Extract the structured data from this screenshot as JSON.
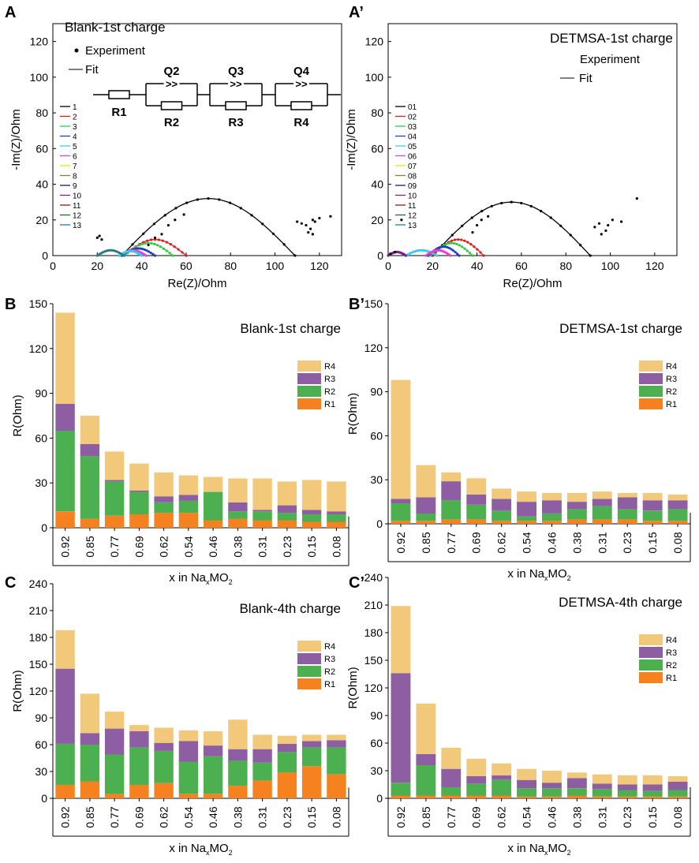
{
  "figure": {
    "panel_labels": [
      "A",
      "A’",
      "B",
      "B’",
      "C",
      "C’"
    ]
  },
  "chart_data": [
    {
      "panel": "A",
      "type": "scatter",
      "title": "Blank-1st charge",
      "xlabel": "Re(Z)/Ohm",
      "ylabel": "-Im(Z)/Ohm",
      "xlim": [
        0,
        130
      ],
      "ylim": [
        0,
        130
      ],
      "xticks": [
        0,
        20,
        40,
        60,
        80,
        100,
        120
      ],
      "yticks": [
        0,
        20,
        40,
        60,
        80,
        100,
        120
      ],
      "legend_experiment": "Experiment",
      "legend_fit": "Fit",
      "circuit_labels": [
        "R1",
        "Q2",
        "R2",
        "Q3",
        "R3",
        "Q4",
        "R4"
      ],
      "series_labels": [
        "1",
        "2",
        "3",
        "4",
        "5",
        "6",
        "7",
        "8",
        "9",
        "10",
        "11",
        "12",
        "13"
      ],
      "series_colors": [
        "#000000",
        "#e41a1c",
        "#2ecc40",
        "#1f3fbf",
        "#33ccee",
        "#e83ecf",
        "#e6e600",
        "#8c7d2f",
        "#1a1a7a",
        "#7a1f8f",
        "#8b1a1a",
        "#1f6e1f",
        "#2a7a8c"
      ],
      "arcs": [
        {
          "color": "#000000",
          "x0": 31,
          "x1": 109,
          "h": 32
        },
        {
          "color": "#e41a1c",
          "x0": 32,
          "x1": 60,
          "h": 9
        },
        {
          "color": "#2ecc40",
          "x0": 32,
          "x1": 54,
          "h": 7
        },
        {
          "color": "#1f3fbf",
          "x0": 31,
          "x1": 46,
          "h": 4
        },
        {
          "color": "#e83ecf",
          "x0": 30,
          "x1": 42,
          "h": 3
        },
        {
          "color": "#33ccee",
          "x0": 30,
          "x1": 40,
          "h": 2.5
        },
        {
          "color": "#2a7a8c",
          "x0": 20,
          "x1": 32,
          "h": 3
        }
      ],
      "tail_points": [
        [
          110,
          19
        ],
        [
          112,
          18
        ],
        [
          114,
          17
        ],
        [
          115,
          13
        ],
        [
          116,
          15
        ],
        [
          117,
          20
        ],
        [
          117,
          12
        ],
        [
          118,
          19
        ],
        [
          120,
          21
        ],
        [
          125,
          22
        ],
        [
          59,
          23
        ],
        [
          55,
          20
        ],
        [
          52,
          17
        ],
        [
          49,
          12
        ],
        [
          46,
          10
        ],
        [
          43,
          6
        ],
        [
          20,
          10
        ],
        [
          21,
          11
        ],
        [
          22,
          9
        ]
      ]
    },
    {
      "panel": "A’",
      "type": "scatter",
      "title": "DETMSA-1st charge",
      "xlabel": "Re(Z)/Ohm",
      "ylabel": "-Im(Z)/Ohm",
      "xlim": [
        0,
        130
      ],
      "ylim": [
        0,
        130
      ],
      "xticks": [
        0,
        20,
        40,
        60,
        80,
        100,
        120
      ],
      "yticks": [
        0,
        20,
        40,
        60,
        80,
        100,
        120
      ],
      "legend_experiment": "Experiment",
      "legend_fit": "Fit",
      "series_labels": [
        "01",
        "02",
        "03",
        "04",
        "05",
        "06",
        "07",
        "08",
        "09",
        "10",
        "11",
        "12",
        "13"
      ],
      "series_colors": [
        "#000000",
        "#e41a1c",
        "#2ecc40",
        "#1f3fbf",
        "#33ccee",
        "#e83ecf",
        "#e6e600",
        "#8c7d2f",
        "#1a1a7a",
        "#7a1f8f",
        "#8b1a1a",
        "#1f6e1f",
        "#2a7a8c"
      ],
      "arcs": [
        {
          "color": "#000000",
          "x0": 20,
          "x1": 91,
          "h": 30
        },
        {
          "color": "#e41a1c",
          "x0": 20,
          "x1": 43,
          "h": 9
        },
        {
          "color": "#2ecc40",
          "x0": 19,
          "x1": 38,
          "h": 7
        },
        {
          "color": "#1f3fbf",
          "x0": 18,
          "x1": 32,
          "h": 5
        },
        {
          "color": "#33ccee",
          "x0": 8,
          "x1": 22,
          "h": 3
        },
        {
          "color": "#e83ecf",
          "x0": 17,
          "x1": 28,
          "h": 3
        },
        {
          "color": "#7a1f8f",
          "x0": 0,
          "x1": 8,
          "h": 2
        }
      ],
      "tail_points": [
        [
          93,
          16
        ],
        [
          95,
          18
        ],
        [
          96,
          12
        ],
        [
          98,
          14
        ],
        [
          99,
          17
        ],
        [
          101,
          20
        ],
        [
          105,
          19
        ],
        [
          112,
          32
        ],
        [
          45,
          22
        ],
        [
          42,
          20
        ],
        [
          40,
          17
        ],
        [
          38,
          13
        ],
        [
          6,
          20
        ],
        [
          3,
          2
        ],
        [
          1,
          1
        ]
      ]
    },
    {
      "panel": "B",
      "type": "bar",
      "stacked": true,
      "title": "Blank-1st charge",
      "xlabel": "x in Na",
      "xlabel_sub": "x",
      "xlabel_tail": "MO",
      "xlabel_sub2": "2",
      "ylabel": "R(Ohm)",
      "ylim": [
        0,
        150
      ],
      "yticks": [
        0,
        30,
        60,
        90,
        120,
        150
      ],
      "categories": [
        "0.92",
        "0.85",
        "0.77",
        "0.69",
        "0.62",
        "0.54",
        "0.46",
        "0.38",
        "0.31",
        "0.23",
        "0.15",
        "0.08"
      ],
      "legend": [
        "R4",
        "R3",
        "R2",
        "R1"
      ],
      "colors": {
        "R1": "#f5821f",
        "R2": "#4caf50",
        "R3": "#8e5ea2",
        "R4": "#f2c97a"
      },
      "series": [
        {
          "name": "R1",
          "values": [
            11,
            6,
            8,
            9,
            10,
            10,
            5,
            6,
            5,
            5,
            4,
            4
          ]
        },
        {
          "name": "R2",
          "values": [
            54,
            42,
            23,
            15,
            7,
            8,
            19,
            5,
            6,
            5,
            5,
            5
          ]
        },
        {
          "name": "R3",
          "values": [
            18,
            8,
            1,
            1,
            4,
            4,
            0,
            6,
            1,
            5,
            3,
            2
          ]
        },
        {
          "name": "R4",
          "values": [
            61,
            19,
            19,
            18,
            16,
            13,
            10,
            16,
            21,
            16,
            20,
            20
          ]
        }
      ]
    },
    {
      "panel": "B’",
      "type": "bar",
      "stacked": true,
      "title": "DETMSA-1st charge",
      "xlabel": "x in Na",
      "xlabel_sub": "x",
      "xlabel_tail": "MO",
      "xlabel_sub2": "2",
      "ylabel": "R(Ohm)",
      "ylim": [
        0,
        150
      ],
      "yticks": [
        0,
        30,
        60,
        90,
        120,
        150
      ],
      "categories": [
        "0.92",
        "0.85",
        "0.77",
        "0.69",
        "0.62",
        "0.54",
        "0.46",
        "0.38",
        "0.31",
        "0.23",
        "0.15",
        "0.08"
      ],
      "legend": [
        "R4",
        "R3",
        "R2",
        "R1"
      ],
      "colors": {
        "R1": "#f5821f",
        "R2": "#4caf50",
        "R3": "#8e5ea2",
        "R4": "#f2c97a"
      },
      "series": [
        {
          "name": "R1",
          "values": [
            2,
            2,
            3,
            3,
            2,
            2,
            2,
            3,
            3,
            3,
            2,
            2
          ]
        },
        {
          "name": "R2",
          "values": [
            12,
            5,
            13,
            10,
            7,
            3,
            5,
            7,
            9,
            7,
            7,
            8
          ]
        },
        {
          "name": "R3",
          "values": [
            3,
            11,
            13,
            7,
            8,
            10,
            9,
            5,
            5,
            8,
            7,
            6
          ]
        },
        {
          "name": "R4",
          "values": [
            81,
            22,
            6,
            11,
            7,
            7,
            5,
            6,
            5,
            3,
            5,
            4
          ]
        }
      ]
    },
    {
      "panel": "C",
      "type": "bar",
      "stacked": true,
      "title": "Blank-4th charge",
      "xlabel": "x in Na",
      "xlabel_sub": "x",
      "xlabel_tail": "MO",
      "xlabel_sub2": "2",
      "ylabel": "R(Ohm)",
      "ylim": [
        0,
        240
      ],
      "yticks": [
        0,
        30,
        60,
        90,
        120,
        150,
        180,
        210,
        240
      ],
      "categories": [
        "0.92",
        "0.85",
        "0.77",
        "0.69",
        "0.62",
        "0.54",
        "0.46",
        "0.38",
        "0.31",
        "0.23",
        "0.15",
        "0.08"
      ],
      "legend": [
        "R4",
        "R3",
        "R2",
        "R1"
      ],
      "colors": {
        "R1": "#f5821f",
        "R2": "#4caf50",
        "R3": "#8e5ea2",
        "R4": "#f2c97a"
      },
      "series": [
        {
          "name": "R1",
          "values": [
            15,
            19,
            5,
            15,
            17,
            5,
            5,
            14,
            20,
            29,
            36,
            27
          ]
        },
        {
          "name": "R2",
          "values": [
            46,
            41,
            44,
            42,
            36,
            36,
            42,
            28,
            20,
            23,
            21,
            30
          ]
        },
        {
          "name": "R3",
          "values": [
            84,
            13,
            29,
            18,
            9,
            23,
            12,
            13,
            15,
            9,
            7,
            8
          ]
        },
        {
          "name": "R4",
          "values": [
            43,
            44,
            19,
            7,
            17,
            12,
            16,
            33,
            16,
            9,
            7,
            6
          ]
        }
      ]
    },
    {
      "panel": "C’",
      "type": "bar",
      "stacked": true,
      "title": "DETMSA-4th charge",
      "xlabel": "x in Na",
      "xlabel_sub": "x",
      "xlabel_tail": "MO",
      "xlabel_sub2": "2",
      "ylabel": "R(Ohm)",
      "ylim": [
        0,
        240
      ],
      "yticks": [
        0,
        30,
        60,
        90,
        120,
        150,
        180,
        210,
        240
      ],
      "categories": [
        "0.92",
        "0.85",
        "0.77",
        "0.69",
        "0.62",
        "0.54",
        "0.46",
        "0.38",
        "0.31",
        "0.23",
        "0.15",
        "0.08"
      ],
      "legend": [
        "R4",
        "R3",
        "R2",
        "R1"
      ],
      "colors": {
        "R1": "#f5821f",
        "R2": "#4caf50",
        "R3": "#8e5ea2",
        "R4": "#f2c97a"
      },
      "series": [
        {
          "name": "R1",
          "values": [
            3,
            3,
            3,
            3,
            3,
            2,
            2,
            3,
            2,
            2,
            2,
            2
          ]
        },
        {
          "name": "R2",
          "values": [
            14,
            33,
            9,
            13,
            17,
            9,
            9,
            8,
            8,
            7,
            6,
            7
          ]
        },
        {
          "name": "R3",
          "values": [
            119,
            12,
            20,
            8,
            5,
            9,
            6,
            11,
            6,
            6,
            7,
            9
          ]
        },
        {
          "name": "R4",
          "values": [
            73,
            55,
            23,
            19,
            13,
            12,
            13,
            6,
            10,
            10,
            10,
            6
          ]
        }
      ]
    }
  ]
}
